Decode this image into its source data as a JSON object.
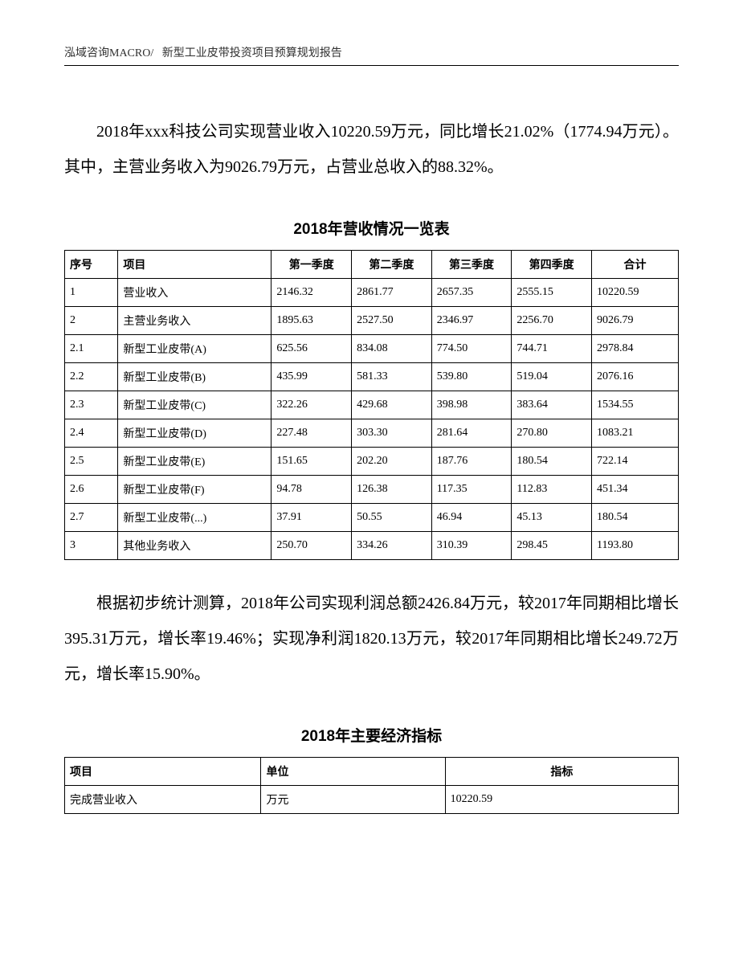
{
  "header": {
    "left": "泓域咨询MACRO/",
    "right": "新型工业皮带投资项目预算规划报告"
  },
  "para1": "2018年xxx科技公司实现营业收入10220.59万元，同比增长21.02%（1774.94万元）。其中，主营业务收入为9026.79万元，占营业总收入的88.32%。",
  "table1": {
    "title": "2018年营收情况一览表",
    "columns": [
      "序号",
      "项目",
      "第一季度",
      "第二季度",
      "第三季度",
      "第四季度",
      "合计"
    ],
    "rows": [
      [
        "1",
        "营业收入",
        "2146.32",
        "2861.77",
        "2657.35",
        "2555.15",
        "10220.59"
      ],
      [
        "2",
        "主营业务收入",
        "1895.63",
        "2527.50",
        "2346.97",
        "2256.70",
        "9026.79"
      ],
      [
        "2.1",
        "新型工业皮带(A)",
        "625.56",
        "834.08",
        "774.50",
        "744.71",
        "2978.84"
      ],
      [
        "2.2",
        "新型工业皮带(B)",
        "435.99",
        "581.33",
        "539.80",
        "519.04",
        "2076.16"
      ],
      [
        "2.3",
        "新型工业皮带(C)",
        "322.26",
        "429.68",
        "398.98",
        "383.64",
        "1534.55"
      ],
      [
        "2.4",
        "新型工业皮带(D)",
        "227.48",
        "303.30",
        "281.64",
        "270.80",
        "1083.21"
      ],
      [
        "2.5",
        "新型工业皮带(E)",
        "151.65",
        "202.20",
        "187.76",
        "180.54",
        "722.14"
      ],
      [
        "2.6",
        "新型工业皮带(F)",
        "94.78",
        "126.38",
        "117.35",
        "112.83",
        "451.34"
      ],
      [
        "2.7",
        "新型工业皮带(...)",
        "37.91",
        "50.55",
        "46.94",
        "45.13",
        "180.54"
      ],
      [
        "3",
        "其他业务收入",
        "250.70",
        "334.26",
        "310.39",
        "298.45",
        "1193.80"
      ]
    ]
  },
  "para2": "根据初步统计测算，2018年公司实现利润总额2426.84万元，较2017年同期相比增长395.31万元，增长率19.46%；实现净利润1820.13万元，较2017年同期相比增长249.72万元，增长率15.90%。",
  "table2": {
    "title": "2018年主要经济指标",
    "columns": [
      "项目",
      "单位",
      "指标"
    ],
    "rows": [
      [
        "完成营业收入",
        "万元",
        "10220.59"
      ]
    ]
  }
}
